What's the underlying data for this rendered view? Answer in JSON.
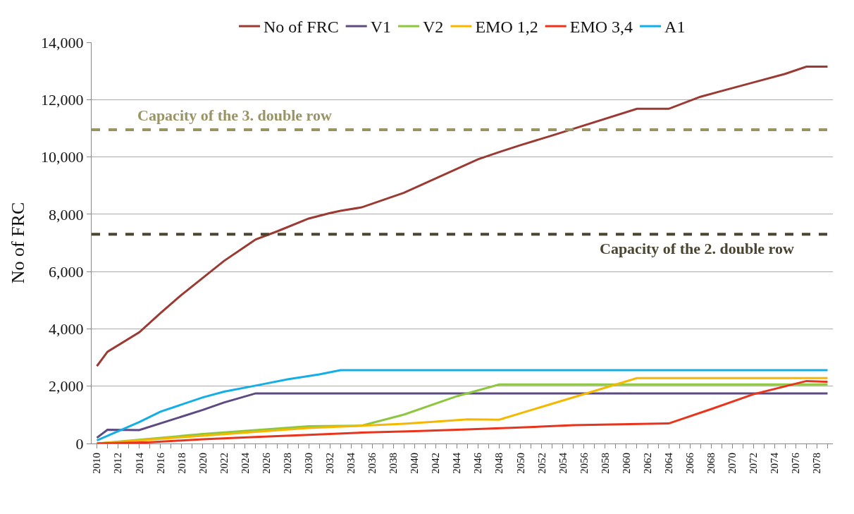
{
  "chart_data": {
    "type": "line",
    "ylabel": "No of FRC",
    "xlim": [
      2009.5,
      2079.5
    ],
    "xticks": [
      2010,
      {
        "value": 2011,
        "label": null
      },
      2012,
      {
        "value": 2013,
        "label": null
      },
      2014,
      {
        "value": 2015,
        "label": null
      },
      2016,
      {
        "value": 2017,
        "label": null
      },
      2018,
      {
        "value": 2019,
        "label": null
      },
      2020,
      {
        "value": 2021,
        "label": null
      },
      2022,
      {
        "value": 2023,
        "label": null
      },
      2024,
      {
        "value": 2025,
        "label": null
      },
      2026,
      {
        "value": 2027,
        "label": null
      },
      2028,
      {
        "value": 2029,
        "label": null
      },
      2030,
      {
        "value": 2031,
        "label": null
      },
      2032,
      {
        "value": 2033,
        "label": null
      },
      2034,
      {
        "value": 2035,
        "label": null
      },
      2036,
      {
        "value": 2037,
        "label": null
      },
      2038,
      {
        "value": 2039,
        "label": null
      },
      2040,
      {
        "value": 2041,
        "label": null
      },
      2042,
      {
        "value": 2043,
        "label": null
      },
      2044,
      {
        "value": 2045,
        "label": null
      },
      2046,
      {
        "value": 2047,
        "label": null
      },
      2048,
      {
        "value": 2049,
        "label": null
      },
      2050,
      {
        "value": 2051,
        "label": null
      },
      2052,
      {
        "value": 2053,
        "label": null
      },
      2054,
      {
        "value": 2055,
        "label": null
      },
      2056,
      {
        "value": 2057,
        "label": null
      },
      2058,
      {
        "value": 2059,
        "label": null
      },
      2060,
      {
        "value": 2061,
        "label": null
      },
      2062,
      {
        "value": 2063,
        "label": null
      },
      2064,
      {
        "value": 2065,
        "label": null
      },
      2066,
      {
        "value": 2067,
        "label": null
      },
      2068,
      {
        "value": 2069,
        "label": null
      },
      2070,
      {
        "value": 2071,
        "label": null
      },
      2072,
      {
        "value": 2073,
        "label": null
      },
      2074,
      {
        "value": 2075,
        "label": null
      },
      2076,
      {
        "value": 2077,
        "label": null
      },
      2078,
      {
        "value": 2079,
        "label": null
      }
    ],
    "ylim": [
      0,
      14000
    ],
    "yticks": [
      0,
      {
        "value": 2000,
        "label": "2,000"
      },
      {
        "value": 4000,
        "label": "4,000"
      },
      {
        "value": 6000,
        "label": "6,000"
      },
      {
        "value": 8000,
        "label": "8,000"
      },
      {
        "value": 10000,
        "label": "10,000"
      },
      {
        "value": 12000,
        "label": "12,000"
      },
      {
        "value": 14000,
        "label": "14,000"
      }
    ],
    "grid": "y",
    "legend": "top",
    "marker": "none",
    "line_style": "solid",
    "series": [
      {
        "name": "No of FRC",
        "color": "#9b3a32",
        "x": [
          2010,
          2011,
          2014,
          2016,
          2018,
          2020,
          2022,
          2024,
          2025,
          2027,
          2030,
          2032,
          2033,
          2035,
          2039,
          2046,
          2048,
          2050,
          2053,
          2061,
          2064,
          2067,
          2072,
          2075,
          2077,
          2079
        ],
        "values": [
          2700,
          3200,
          3880,
          4550,
          5190,
          5780,
          6370,
          6870,
          7120,
          7400,
          7850,
          8040,
          8120,
          8240,
          8750,
          9920,
          10170,
          10410,
          10750,
          11680,
          11680,
          12100,
          12600,
          12900,
          13150,
          13150
        ]
      },
      {
        "name": "V1",
        "color": "#5c4a80",
        "x": [
          2010,
          2011,
          2014,
          2020,
          2022,
          2025,
          2079
        ],
        "values": [
          200,
          480,
          470,
          1170,
          1430,
          1750,
          1750
        ]
      },
      {
        "name": "V2",
        "color": "#8dc63f",
        "x": [
          2010,
          2020,
          2030,
          2035,
          2039,
          2044,
          2048,
          2079
        ],
        "values": [
          0,
          330,
          600,
          620,
          1010,
          1650,
          2060,
          2060
        ]
      },
      {
        "name": "EMO 1,2",
        "color": "#f5b800",
        "x": [
          2010,
          2020,
          2030,
          2035,
          2039,
          2042,
          2045,
          2048,
          2061,
          2079
        ],
        "values": [
          0,
          270,
          540,
          620,
          690,
          760,
          840,
          830,
          2280,
          2280
        ]
      },
      {
        "name": "EMO 3,4",
        "color": "#e8341c",
        "x": [
          2010,
          2015,
          2020,
          2025,
          2030,
          2035,
          2040,
          2045,
          2050,
          2055,
          2064,
          2068,
          2072,
          2077,
          2079
        ],
        "values": [
          0,
          40,
          150,
          230,
          300,
          380,
          430,
          490,
          560,
          640,
          700,
          1200,
          1720,
          2180,
          2150
        ]
      },
      {
        "name": "A1",
        "color": "#14aee6",
        "x": [
          2010,
          2014,
          2016,
          2020,
          2022,
          2025,
          2028,
          2031,
          2033,
          2079
        ],
        "values": [
          110,
          750,
          1110,
          1610,
          1810,
          2020,
          2240,
          2410,
          2560,
          2560
        ]
      }
    ],
    "ref_lines": [
      {
        "axis": "y",
        "value": 10950,
        "color": "#9a9464",
        "line_style": "dashed",
        "label": "Capacity of the 3. double row"
      },
      {
        "axis": "y",
        "value": 7300,
        "color": "#4a4530",
        "line_style": "dashed",
        "label": "Capacity of the 2. double row"
      }
    ]
  }
}
